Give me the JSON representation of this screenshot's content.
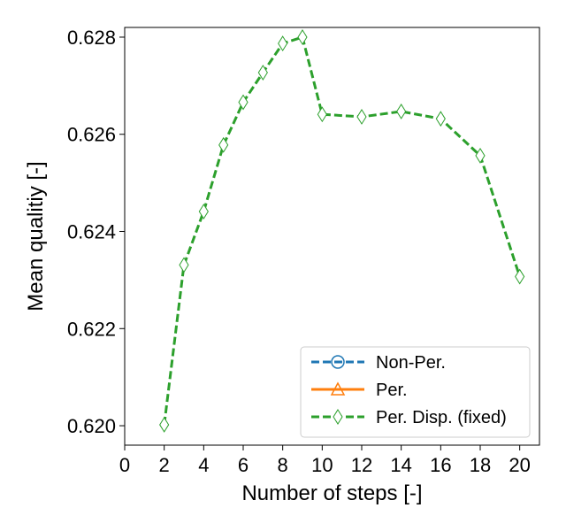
{
  "chart_data": {
    "type": "line",
    "title": "",
    "xlabel": "Number of steps [-]",
    "ylabel": "Mean qualitiy [-]",
    "xlim": [
      0,
      21
    ],
    "ylim": [
      0.6196,
      0.6282
    ],
    "xticks": [
      0,
      2,
      4,
      6,
      8,
      10,
      12,
      14,
      16,
      18,
      20
    ],
    "yticks": [
      0.62,
      0.622,
      0.624,
      0.626,
      0.628
    ],
    "xtick_labels": [
      "0",
      "2",
      "4",
      "6",
      "8",
      "10",
      "12",
      "14",
      "16",
      "18",
      "20"
    ],
    "ytick_labels": [
      "0.620",
      "0.622",
      "0.624",
      "0.626",
      "0.628"
    ],
    "grid": false,
    "legend_position": "bottom-right",
    "series": [
      {
        "name": "Non-Per.",
        "color": "#1f77b4",
        "linestyle": "dashed",
        "marker": "circle",
        "x": [],
        "y": []
      },
      {
        "name": "Per.",
        "color": "#ff7f0e",
        "linestyle": "solid",
        "marker": "triangle",
        "x": [],
        "y": []
      },
      {
        "name": "Per. Disp. (fixed)",
        "color": "#2ca02c",
        "linestyle": "dashed",
        "marker": "thin_diamond",
        "x": [
          2,
          3,
          4,
          5,
          6,
          7,
          8,
          9,
          10,
          12,
          14,
          16,
          18,
          20
        ],
        "y": [
          0.62002,
          0.62331,
          0.62441,
          0.62578,
          0.62666,
          0.62727,
          0.62787,
          0.628,
          0.62641,
          0.62636,
          0.62647,
          0.62632,
          0.62556,
          0.62307
        ]
      }
    ]
  }
}
